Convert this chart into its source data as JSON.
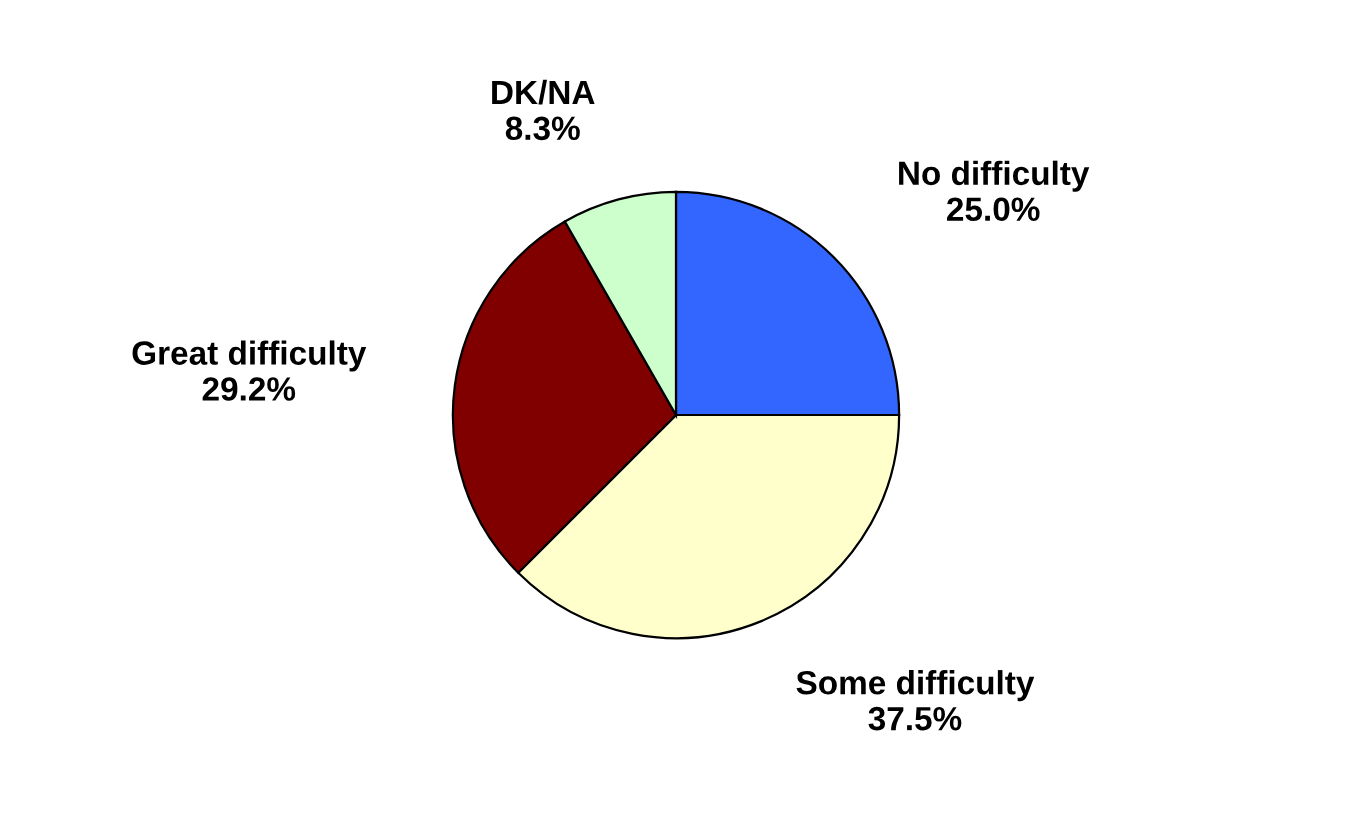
{
  "chart_data": {
    "type": "pie",
    "categories": [
      "No difficulty",
      "Some difficulty",
      "Great difficulty",
      "DK/NA"
    ],
    "values": [
      25.0,
      37.5,
      29.2,
      8.3
    ],
    "value_labels": [
      "25.0%",
      "37.5%",
      "29.2%",
      "8.3%"
    ],
    "colors": [
      "#3366ff",
      "#ffffcc",
      "#800000",
      "#ccffcc"
    ],
    "legend": false
  }
}
